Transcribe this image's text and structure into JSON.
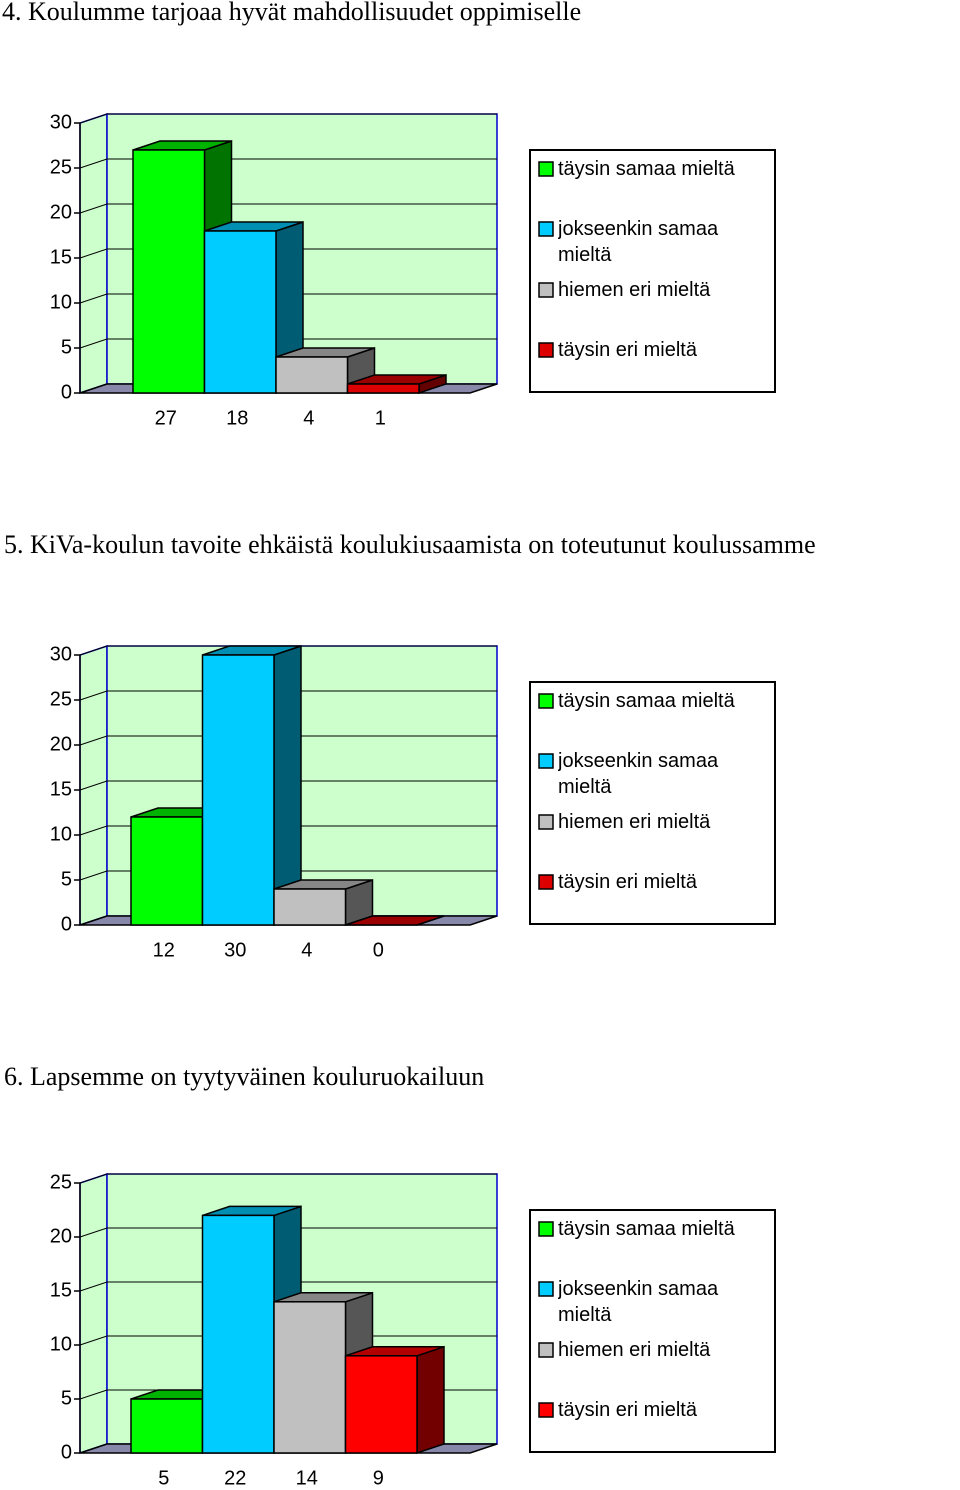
{
  "chart_data": [
    {
      "type": "bar3d",
      "title": "4. Koulumme tarjoaa hyvät mahdollisuudet oppimiselle",
      "ylim": [
        0,
        30
      ],
      "yticks": [
        0,
        5,
        10,
        15,
        20,
        25,
        30
      ],
      "series": [
        {
          "name": "täysin samaa mieltä",
          "color": "#00ff00",
          "values": [
            27
          ]
        },
        {
          "name": "jokseenkin samaa mieltä",
          "color": "#00ccff",
          "values": [
            18
          ]
        },
        {
          "name": "hiemen eri mieltä",
          "color": "#c0c0c0",
          "values": [
            4
          ]
        },
        {
          "name": "täysin eri mieltä",
          "color": "#dd0000",
          "values": [
            1
          ]
        }
      ]
    },
    {
      "type": "bar3d",
      "title": "5. KiVa-koulun tavoite ehkäistä koulukiusaamista on toteutunut koulussamme",
      "ylim": [
        0,
        30
      ],
      "yticks": [
        0,
        5,
        10,
        15,
        20,
        25,
        30
      ],
      "series": [
        {
          "name": "täysin samaa mieltä",
          "color": "#00ff00",
          "values": [
            12
          ]
        },
        {
          "name": "jokseenkin samaa mieltä",
          "color": "#00ccff",
          "values": [
            30
          ]
        },
        {
          "name": "hiemen eri mieltä",
          "color": "#c0c0c0",
          "values": [
            4
          ]
        },
        {
          "name": "täysin eri mieltä",
          "color": "#dd0000",
          "values": [
            0
          ]
        }
      ]
    },
    {
      "type": "bar3d",
      "title": "6. Lapsemme on tyytyväinen kouluruokailuun",
      "ylim": [
        0,
        25
      ],
      "yticks": [
        0,
        5,
        10,
        15,
        20,
        25
      ],
      "series": [
        {
          "name": "täysin samaa mieltä",
          "color": "#00ff00",
          "values": [
            5
          ]
        },
        {
          "name": "jokseenkin samaa mieltä",
          "color": "#00ccff",
          "values": [
            22
          ]
        },
        {
          "name": "hiemen eri mieltä",
          "color": "#c0c0c0",
          "values": [
            14
          ]
        },
        {
          "name": "täysin eri mieltä",
          "color": "#ff0000",
          "values": [
            9
          ]
        }
      ]
    }
  ]
}
